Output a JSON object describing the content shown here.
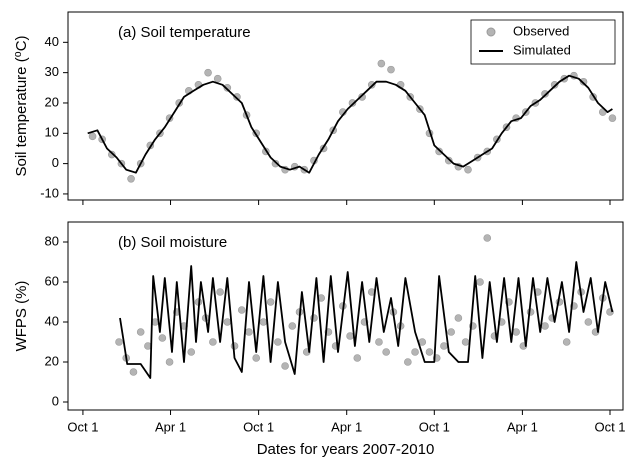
{
  "chart_data": [
    {
      "type": "line",
      "annotation": "(a) Soil temperature",
      "ylabel": "Soil temperature (⁰C)",
      "xlim": [
        -31,
        1122
      ],
      "xticks": [
        0,
        182,
        365,
        548,
        730,
        913,
        1095
      ],
      "ylim": [
        -12,
        50
      ],
      "yticks": [
        -10,
        0,
        10,
        20,
        30,
        40
      ],
      "legend": "upper right",
      "series": [
        {
          "name": "Observed",
          "mode": "markers",
          "color": "#b4b4b4",
          "x": [
            20,
            40,
            60,
            80,
            100,
            120,
            140,
            160,
            180,
            200,
            220,
            240,
            260,
            280,
            300,
            320,
            340,
            360,
            380,
            400,
            420,
            440,
            460,
            480,
            500,
            520,
            540,
            560,
            580,
            600,
            620,
            640,
            660,
            680,
            700,
            720,
            740,
            760,
            780,
            800,
            820,
            840,
            860,
            880,
            900,
            920,
            940,
            960,
            980,
            1000,
            1020,
            1040,
            1060,
            1080,
            1100
          ],
          "values": [
            9,
            8,
            3,
            0,
            -5,
            0,
            6,
            10,
            15,
            20,
            24,
            26,
            30,
            28,
            25,
            22,
            16,
            10,
            4,
            0,
            -2,
            -1,
            -2,
            1,
            5,
            11,
            17,
            20,
            22,
            26,
            33,
            31,
            26,
            22,
            18,
            10,
            4,
            1,
            -1,
            -2,
            2,
            4,
            8,
            12,
            15,
            17,
            20,
            23,
            26,
            28,
            29,
            27,
            22,
            17,
            15
          ]
        },
        {
          "name": "Simulated",
          "mode": "line",
          "color": "#000000",
          "x": [
            10,
            30,
            50,
            70,
            90,
            110,
            130,
            150,
            170,
            190,
            210,
            230,
            250,
            270,
            290,
            310,
            330,
            350,
            370,
            390,
            410,
            430,
            450,
            470,
            490,
            510,
            530,
            550,
            570,
            590,
            610,
            630,
            650,
            670,
            690,
            710,
            730,
            750,
            770,
            790,
            810,
            830,
            850,
            870,
            890,
            910,
            930,
            950,
            970,
            990,
            1010,
            1030,
            1050,
            1070,
            1090,
            1100
          ],
          "values": [
            10,
            11,
            5,
            2,
            -2,
            -3,
            3,
            8,
            12,
            17,
            22,
            24,
            26,
            27,
            26,
            23,
            20,
            12,
            7,
            2,
            -1,
            -2,
            -1,
            -3,
            3,
            8,
            14,
            18,
            21,
            24,
            27,
            27,
            26,
            24,
            20,
            16,
            6,
            3,
            0,
            -1,
            1,
            3,
            5,
            10,
            14,
            15,
            19,
            21,
            24,
            27,
            29,
            28,
            25,
            20,
            17,
            18
          ]
        }
      ]
    },
    {
      "type": "line",
      "annotation": "(b) Soil moisture",
      "ylabel": "WFPS (%)",
      "xlabel": "Dates for years 2007-2010",
      "xlim": [
        -31,
        1122
      ],
      "xticks": [
        {
          "value": 0,
          "label": "Oct 1"
        },
        {
          "value": 182,
          "label": "Apr 1"
        },
        {
          "value": 365,
          "label": "Oct 1"
        },
        {
          "value": 548,
          "label": "Apr 1"
        },
        {
          "value": 730,
          "label": "Oct 1"
        },
        {
          "value": 913,
          "label": "Apr 1"
        },
        {
          "value": 1095,
          "label": "Oct 1"
        }
      ],
      "ylim": [
        -4,
        90
      ],
      "yticks": [
        0,
        20,
        40,
        60,
        80
      ],
      "series": [
        {
          "mode": "markers",
          "color": "#b4b4b4",
          "x": [
            75,
            90,
            105,
            120,
            135,
            150,
            165,
            180,
            195,
            210,
            225,
            240,
            255,
            270,
            285,
            300,
            315,
            330,
            345,
            360,
            375,
            390,
            405,
            420,
            435,
            450,
            465,
            480,
            495,
            510,
            525,
            540,
            555,
            570,
            585,
            600,
            615,
            630,
            645,
            660,
            675,
            690,
            705,
            720,
            735,
            750,
            765,
            780,
            795,
            810,
            825,
            840,
            855,
            870,
            885,
            900,
            915,
            930,
            945,
            960,
            975,
            990,
            1005,
            1020,
            1035,
            1050,
            1065,
            1080,
            1095
          ],
          "values": [
            30,
            22,
            15,
            35,
            28,
            40,
            32,
            20,
            45,
            38,
            25,
            50,
            42,
            30,
            55,
            40,
            28,
            46,
            35,
            22,
            40,
            50,
            30,
            18,
            38,
            45,
            25,
            42,
            52,
            35,
            28,
            48,
            33,
            22,
            40,
            55,
            30,
            25,
            45,
            38,
            20,
            25,
            30,
            25,
            22,
            28,
            35,
            42,
            30,
            38,
            60,
            82,
            33,
            40,
            50,
            35,
            28,
            45,
            55,
            38,
            42,
            50,
            30,
            48,
            55,
            40,
            35,
            52,
            45
          ]
        },
        {
          "mode": "line",
          "color": "#000000",
          "x": [
            77,
            85,
            92,
            120,
            140,
            146,
            160,
            170,
            185,
            195,
            210,
            225,
            235,
            245,
            260,
            270,
            285,
            300,
            315,
            330,
            345,
            360,
            375,
            390,
            405,
            420,
            440,
            455,
            470,
            485,
            500,
            515,
            530,
            550,
            565,
            580,
            595,
            610,
            625,
            640,
            655,
            670,
            690,
            710,
            730,
            740,
            760,
            780,
            800,
            815,
            830,
            845,
            860,
            875,
            890,
            905,
            920,
            935,
            950,
            965,
            980,
            995,
            1010,
            1025,
            1040,
            1055,
            1070,
            1085,
            1100
          ],
          "values": [
            42,
            30,
            19,
            19,
            12,
            63,
            35,
            62,
            25,
            60,
            20,
            68,
            30,
            60,
            35,
            62,
            30,
            62,
            22,
            15,
            60,
            25,
            63,
            20,
            60,
            30,
            14,
            55,
            25,
            62,
            20,
            63,
            25,
            65,
            28,
            60,
            30,
            62,
            35,
            52,
            28,
            62,
            35,
            20,
            20,
            63,
            25,
            20,
            20,
            63,
            22,
            60,
            30,
            62,
            30,
            62,
            28,
            62,
            35,
            62,
            40,
            60,
            35,
            70,
            45,
            62,
            35,
            60,
            45
          ]
        }
      ]
    }
  ]
}
